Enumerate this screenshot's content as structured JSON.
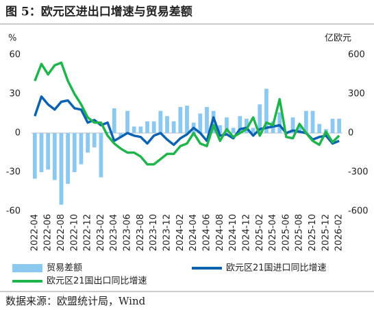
{
  "chart_data": {
    "type": "combo",
    "title": "图 5：欧元区进出口增速与贸易差额",
    "source": "数据来源：欧盟统计局，Wind",
    "y_unit": "%",
    "y2_unit": "亿欧元",
    "categories": [
      "2022-04",
      null,
      "2022-06",
      null,
      "2022-08",
      null,
      "2022-10",
      null,
      "2022-12",
      null,
      "2023-02",
      null,
      "2023-04",
      null,
      "2023-06",
      null,
      "2023-08",
      null,
      "2023-10",
      null,
      "2023-12",
      null,
      "2024-02",
      null,
      "2024-04",
      null,
      "2024-06",
      null,
      "2024-08",
      null,
      "2024-10",
      null,
      "2024-12",
      null,
      "2025-02",
      null,
      "2025-04",
      null,
      "2025-06",
      null,
      "2025-08",
      null,
      "2025-10",
      null,
      "2025-12",
      null,
      "2026-02"
    ],
    "ylim": [
      -60,
      60
    ],
    "yticks": [
      60,
      30,
      0,
      -30,
      -60
    ],
    "y2lim": [
      -600,
      600
    ],
    "y2ticks": [
      600,
      300,
      0,
      -300,
      -600
    ],
    "series": [
      {
        "name": "贸易差额",
        "type": "bar",
        "axis": "y2",
        "color": "#8cc9f1",
        "values": [
          -350,
          -300,
          -280,
          -360,
          -550,
          -390,
          -300,
          -240,
          -150,
          -110,
          -340,
          10,
          190,
          -30,
          170,
          50,
          50,
          90,
          90,
          170,
          130,
          90,
          200,
          210,
          80,
          150,
          200,
          170,
          60,
          120,
          40,
          130,
          110,
          40,
          220,
          340,
          90,
          160,
          -10,
          120,
          50,
          170,
          170,
          70,
          30,
          110,
          110
        ]
      },
      {
        "name": "欧元区21国进口同比增速",
        "type": "line",
        "color": "#0b62b0",
        "values": [
          13,
          28,
          22,
          18,
          24,
          25,
          19,
          18,
          8,
          10,
          6,
          8,
          -6,
          -3,
          0,
          -2,
          -3,
          -8,
          -2,
          0,
          -5,
          -9,
          -4,
          -1,
          4,
          0,
          -6,
          12,
          -2,
          -1,
          -4,
          3,
          4,
          -2,
          3,
          4,
          5,
          6,
          0,
          2,
          1,
          0,
          -5,
          -3,
          -2,
          -8,
          -6
        ]
      },
      {
        "name": "欧元区21国出口同比增速",
        "type": "line",
        "color": "#1fb44c",
        "values": [
          40,
          53,
          45,
          52,
          54,
          40,
          30,
          22,
          12,
          8,
          8,
          -2,
          -8,
          -12,
          -15,
          -15,
          -18,
          -24,
          -24,
          -20,
          -16,
          -16,
          -10,
          -8,
          0,
          -8,
          -10,
          6,
          -6,
          3,
          -3,
          0,
          3,
          12,
          -2,
          8,
          6,
          26,
          -3,
          -4,
          7,
          0,
          -6,
          -9,
          1,
          -7,
          -2
        ]
      }
    ]
  }
}
